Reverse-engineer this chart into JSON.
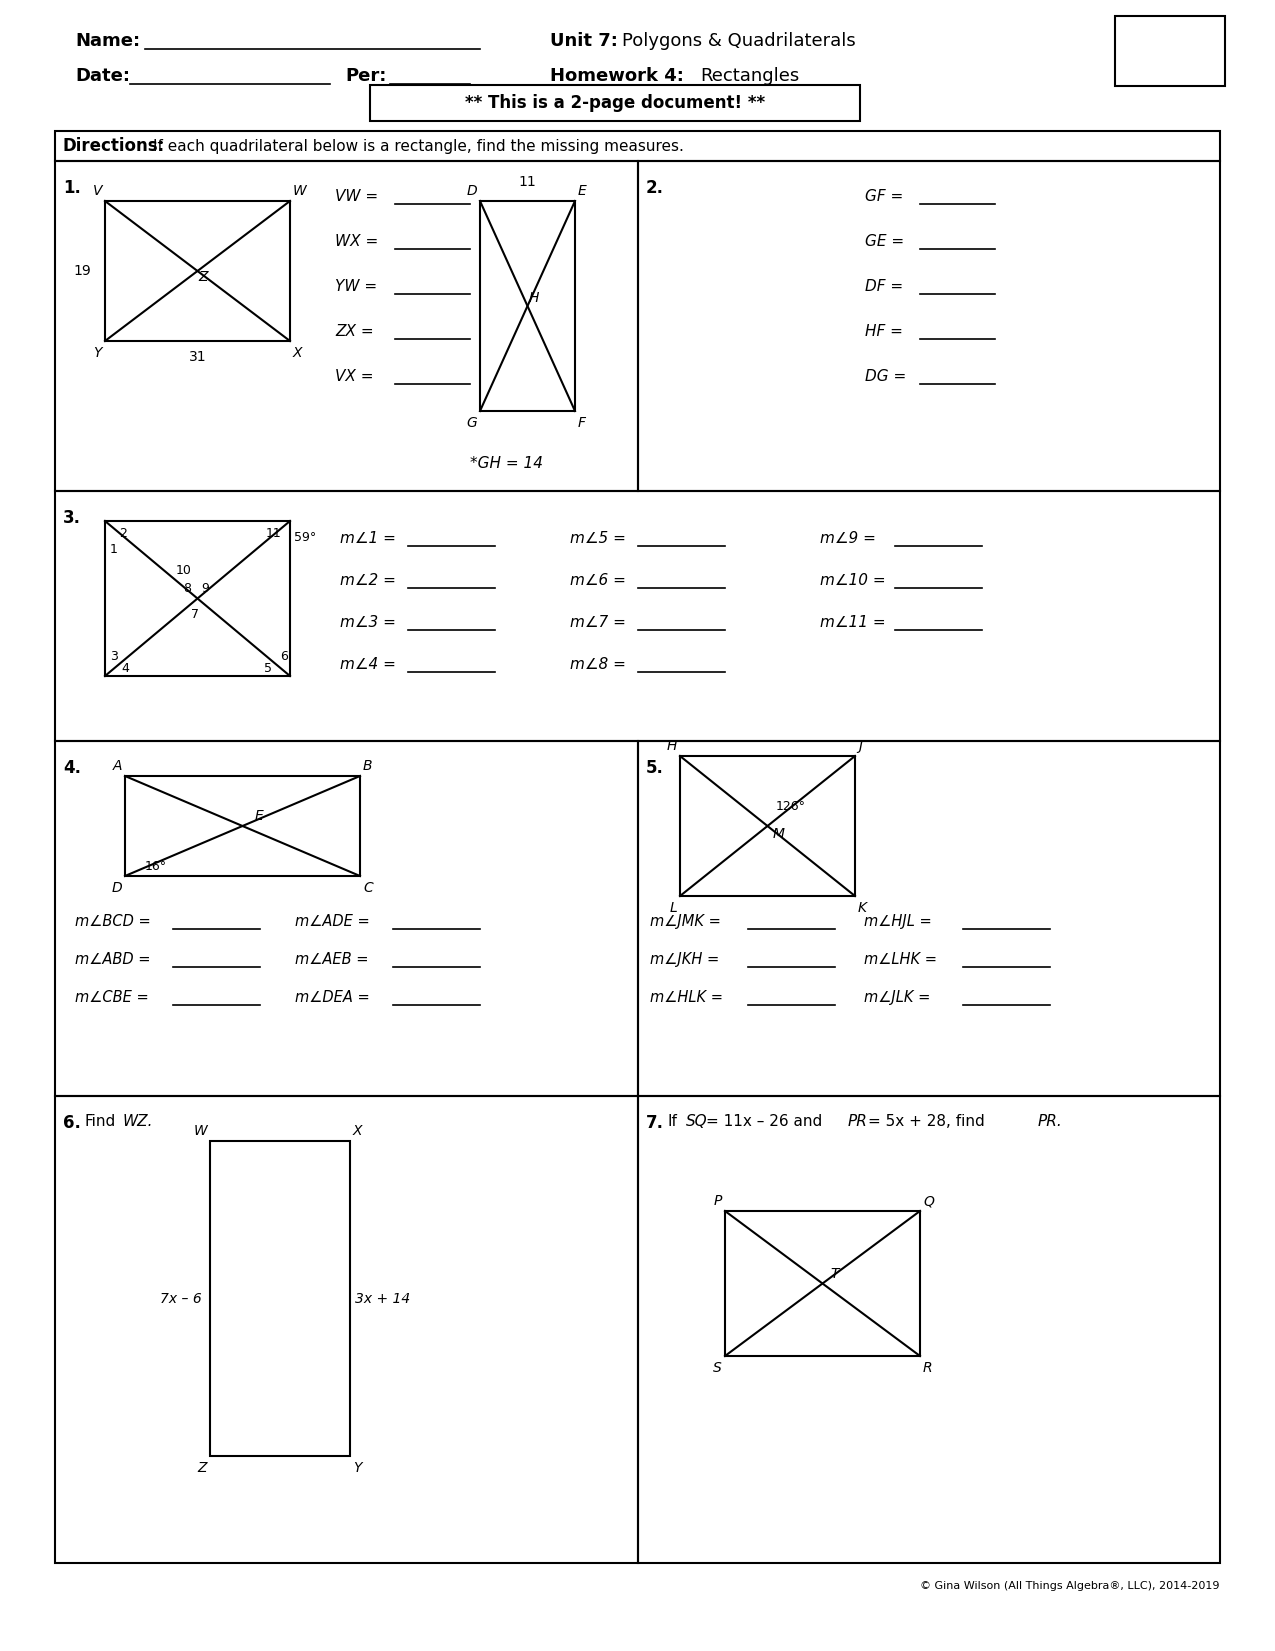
{
  "title_name": "Name:",
  "title_unit": "Unit 7: Polygons & Quadrilaterals",
  "title_date": "Date:",
  "title_per": "Per:",
  "title_hw": "Homework 4: Rectangles",
  "banner": "** This is a 2-page document! **",
  "directions": "Directions:  If each quadrilateral below is a rectangle, find the missing measures.",
  "background": "#ffffff",
  "border_color": "#000000",
  "copyright": "© Gina Wilson (All Things Algebra®, LLC), 2014-2019"
}
